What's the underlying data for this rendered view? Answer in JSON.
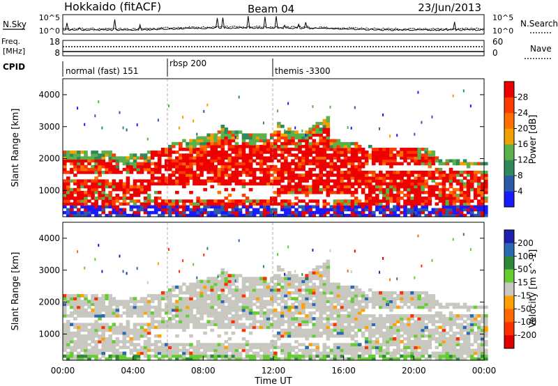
{
  "header": {
    "station": "Hokkaido (fitACF)",
    "beam": "Beam 04",
    "date": "23/Jun/2013"
  },
  "summary_panel": {
    "left_label": "N.Sky",
    "right_label": "N.Search",
    "left_ticks": [
      "10^5",
      "10^0"
    ],
    "right_ticks": [
      "10^5",
      "10^0"
    ]
  },
  "freq_panel": {
    "left_label": "Freq.",
    "left_unit": "[MHz]",
    "right_label": "Nave",
    "left_ticks": [
      "18",
      "8"
    ],
    "right_ticks": [
      "60",
      "0"
    ]
  },
  "cpid": {
    "label": "CPID",
    "segments": [
      {
        "name": "normal (fast) 151",
        "start_hour": 0
      },
      {
        "name": "rbsp 200",
        "start_hour": 6
      },
      {
        "name": "themis -3300",
        "start_hour": 12
      }
    ]
  },
  "chart_data": [
    {
      "type": "heatmap",
      "name": "Power",
      "ylabel": "Slant Range [km]",
      "xlabel": "",
      "x_ticks": [
        "00:00",
        "04:00",
        "08:00",
        "12:00",
        "16:00",
        "20:00",
        "00:00"
      ],
      "xlim_hours": [
        0,
        24
      ],
      "y_ticks": [
        1000,
        2000,
        3000,
        4000
      ],
      "ylim": [
        180,
        4500
      ],
      "colorbar": {
        "label": "Power [dB]",
        "ticks": [
          4,
          8,
          12,
          16,
          20,
          24,
          28
        ],
        "range": [
          0,
          32
        ],
        "colors": [
          "#1a1aff",
          "#2a5aa8",
          "#2e8a5a",
          "#5ab04a",
          "#f0a000",
          "#ff7000",
          "#ff3a00",
          "#ee0000"
        ]
      }
    },
    {
      "type": "heatmap",
      "name": "Velocity",
      "ylabel": "Slant Range [km]",
      "xlabel": "Time UT",
      "x_ticks": [
        "00:00",
        "04:00",
        "08:00",
        "12:00",
        "16:00",
        "20:00",
        "00:00"
      ],
      "xlim_hours": [
        0,
        24
      ],
      "y_ticks": [
        1000,
        2000,
        3000,
        4000
      ],
      "ylim": [
        180,
        4500
      ],
      "colorbar": {
        "label": "Velocity [m s^-1]",
        "ticks": [
          200,
          100,
          50,
          15,
          -15,
          -50,
          -100,
          -200
        ],
        "colors": [
          "#2020b0",
          "#2a6ab0",
          "#2e8a3a",
          "#66cc33",
          "#c8c8c0",
          "#ffa000",
          "#ff6a00",
          "#ff3000",
          "#e00000"
        ]
      }
    }
  ]
}
